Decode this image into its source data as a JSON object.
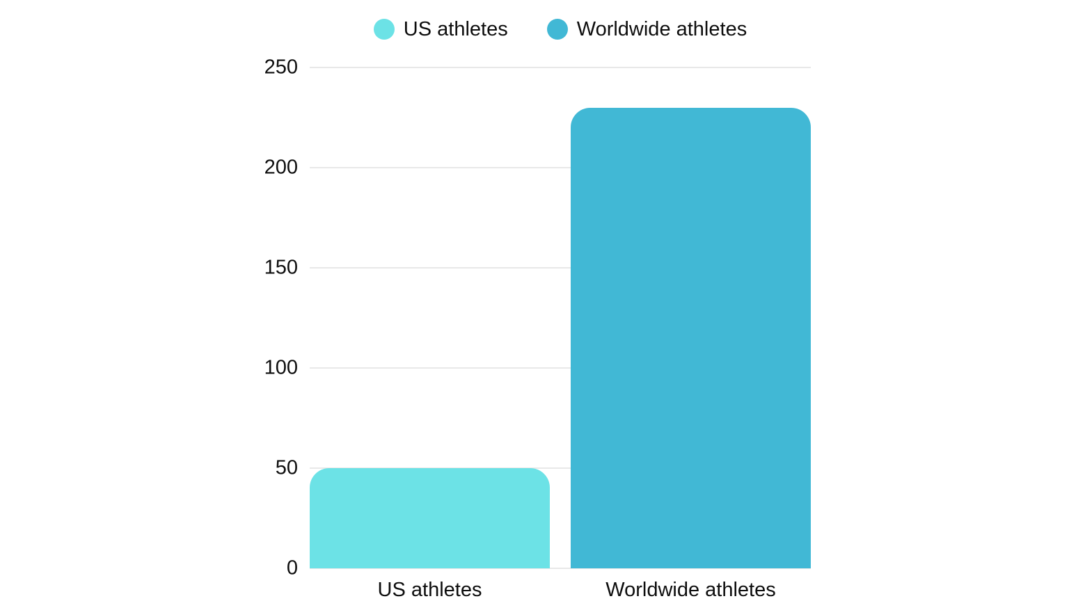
{
  "chart_data": {
    "type": "bar",
    "title": "",
    "categories": [
      "US athletes",
      "Worldwide athletes"
    ],
    "values": [
      50,
      230
    ],
    "xlabel": "",
    "ylabel": "",
    "ylim": [
      0,
      250
    ],
    "yticks": [
      0,
      50,
      100,
      150,
      200,
      250
    ],
    "grid": true,
    "legend_position": "top",
    "legend": [
      {
        "label": "US athletes",
        "color": "#6ce2e6"
      },
      {
        "label": "Worldwide athletes",
        "color": "#41b8d5"
      }
    ],
    "bar_colors": [
      "#6ce2e6",
      "#41b8d5"
    ],
    "colors": {
      "background": "#ffffff",
      "gridline": "#e8e8e8",
      "text": "#0d0d0d"
    }
  }
}
